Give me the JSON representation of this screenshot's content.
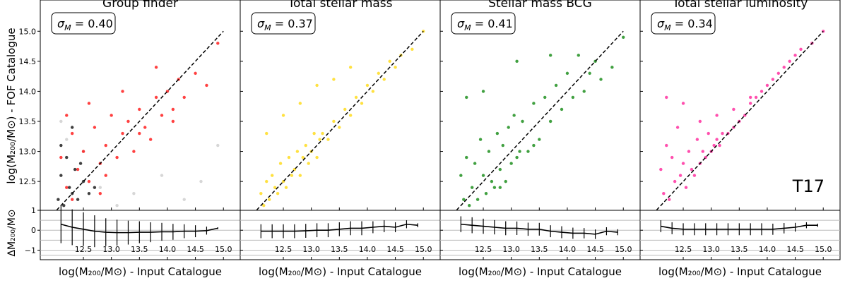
{
  "chart_data": {
    "type": "panels",
    "xlim": [
      11.73,
      15.3
    ],
    "ylim": [
      12.02,
      15.52
    ],
    "res_ylim": [
      -1.48,
      1
    ],
    "xticks": [
      {
        "value": 12.5,
        "label": "12.5"
      },
      {
        "value": 13.0,
        "label": "13.0"
      },
      {
        "value": 13.5,
        "label": "13.5"
      },
      {
        "value": 14.0,
        "label": "14.0"
      },
      {
        "value": 14.5,
        "label": "14.5"
      },
      {
        "value": 15.0,
        "label": "15.0"
      }
    ],
    "yticks": [
      {
        "value": 12.5,
        "label": "12.5"
      },
      {
        "value": 13.0,
        "label": "13.0"
      },
      {
        "value": 13.5,
        "label": "13.5"
      },
      {
        "value": 14.0,
        "label": "14.0"
      },
      {
        "value": 14.5,
        "label": "14.5"
      },
      {
        "value": 15.0,
        "label": "15.0"
      }
    ],
    "res_yticks": [
      {
        "value": -1,
        "label": "−1"
      },
      0,
      1
    ],
    "res_grid": [
      -1.25,
      -1,
      -0.5,
      0,
      0.5
    ],
    "xlabel": "log(M₂₀₀/M⊙) - Input Catalogue",
    "ylabel": "log(M₂₀₀/M⊙) - FOF Catalogue",
    "res_ylabel": "ΔM₂₀₀/M⊙",
    "sigma_symbol": "σ",
    "sigma_sub": "M",
    "sigma_eq": " =  ",
    "reference_line": {
      "x": [
        11.75,
        15.0
      ],
      "y": [
        11.75,
        15.0
      ]
    },
    "annotation": "T17",
    "panels": [
      {
        "type": "scatter",
        "title": "Group finder",
        "sigma": "0.40",
        "series": [
          {
            "color": "#c8c8c8",
            "x": [
              12.2,
              12.8,
              13.4,
              13.9,
              14.3,
              14.6,
              14.9,
              12.5,
              13.1,
              12.1
            ],
            "values": [
              13.2,
              12.4,
              12.3,
              12.6,
              12.2,
              12.5,
              13.1,
              13.0,
              12.1,
              13.5
            ]
          },
          {
            "color": "#ff0000",
            "x": [
              12.1,
              12.2,
              12.3,
              12.4,
              12.5,
              12.6,
              12.7,
              12.8,
              12.9,
              13.0,
              13.1,
              13.2,
              13.3,
              13.4,
              13.5,
              13.6,
              13.7,
              13.8,
              13.9,
              14.0,
              14.1,
              14.2,
              14.3,
              14.5,
              14.7,
              14.9,
              12.3,
              12.6,
              12.9,
              13.2,
              13.5,
              13.8,
              14.1,
              12.2,
              12.8
            ],
            "values": [
              12.9,
              12.4,
              13.3,
              12.7,
              13.0,
              12.5,
              13.4,
              12.8,
              13.1,
              13.6,
              12.9,
              13.3,
              13.5,
              13.0,
              13.7,
              13.4,
              13.2,
              13.9,
              13.6,
              14.0,
              13.7,
              14.2,
              13.9,
              14.3,
              14.1,
              14.8,
              12.2,
              13.8,
              12.6,
              14.0,
              13.3,
              14.4,
              13.5,
              13.6,
              12.3
            ]
          },
          {
            "color": "#000000",
            "x": [
              12.05,
              12.1,
              12.15,
              12.2,
              12.25,
              12.3,
              12.35,
              12.4,
              12.5,
              12.6,
              12.7,
              12.1,
              12.3,
              12.45
            ],
            "values": [
              12.2,
              12.6,
              12.1,
              12.9,
              12.4,
              12.3,
              12.7,
              12.2,
              12.5,
              12.3,
              12.4,
              13.1,
              13.4,
              12.8
            ]
          }
        ],
        "residual": {
          "x": [
            12.1,
            12.3,
            12.5,
            12.7,
            12.9,
            13.1,
            13.3,
            13.5,
            13.7,
            13.9,
            14.1,
            14.3,
            14.5,
            14.7,
            14.9
          ],
          "values": [
            0.3,
            0.15,
            0.05,
            -0.05,
            -0.1,
            -0.12,
            -0.12,
            -0.1,
            -0.1,
            -0.08,
            -0.08,
            -0.05,
            -0.05,
            -0.02,
            0.1
          ],
          "errors": [
            0.95,
            0.9,
            0.85,
            0.8,
            0.7,
            0.65,
            0.6,
            0.55,
            0.5,
            0.45,
            0.4,
            0.35,
            0.3,
            0.2,
            0.05
          ]
        }
      },
      {
        "type": "scatter",
        "title": "Total stellar mass",
        "sigma": "0.37",
        "series": [
          {
            "color": "#ffd700",
            "x": [
              12.1,
              12.15,
              12.2,
              12.25,
              12.3,
              12.35,
              12.4,
              12.45,
              12.5,
              12.55,
              12.6,
              12.65,
              12.7,
              12.75,
              12.8,
              12.85,
              12.9,
              12.95,
              13.0,
              13.05,
              13.1,
              13.15,
              13.2,
              13.3,
              13.4,
              13.5,
              13.6,
              13.7,
              13.8,
              13.9,
              14.0,
              14.1,
              14.2,
              14.3,
              14.4,
              14.5,
              14.6,
              14.8,
              15.0,
              12.2,
              12.5,
              12.8,
              13.1,
              13.4,
              13.7
            ],
            "values": [
              12.3,
              12.1,
              12.5,
              12.2,
              12.6,
              12.4,
              12.3,
              12.8,
              12.5,
              12.4,
              12.9,
              12.6,
              12.7,
              13.0,
              12.6,
              12.9,
              13.1,
              12.8,
              13.0,
              13.3,
              12.9,
              13.2,
              13.3,
              13.2,
              13.5,
              13.4,
              13.7,
              13.6,
              13.9,
              13.8,
              14.1,
              14.0,
              14.3,
              14.2,
              14.5,
              14.4,
              14.6,
              14.7,
              15.0,
              13.3,
              13.6,
              13.8,
              14.1,
              14.2,
              14.4
            ]
          }
        ],
        "residual": {
          "x": [
            12.1,
            12.3,
            12.5,
            12.7,
            12.9,
            13.1,
            13.3,
            13.5,
            13.7,
            13.9,
            14.1,
            14.3,
            14.5,
            14.7,
            14.9
          ],
          "values": [
            -0.05,
            -0.05,
            -0.05,
            -0.05,
            -0.03,
            0,
            0,
            0.05,
            0.1,
            0.1,
            0.15,
            0.2,
            0.15,
            0.3,
            0.25
          ],
          "errors": [
            0.35,
            0.35,
            0.35,
            0.35,
            0.35,
            0.35,
            0.35,
            0.35,
            0.35,
            0.35,
            0.3,
            0.3,
            0.25,
            0.2,
            0.1
          ]
        }
      },
      {
        "type": "scatter",
        "title": "Stellar mass BCG",
        "sigma": "0.41",
        "series": [
          {
            "color": "#008000",
            "x": [
              12.1,
              12.15,
              12.2,
              12.25,
              12.3,
              12.35,
              12.4,
              12.45,
              12.5,
              12.55,
              12.6,
              12.65,
              12.7,
              12.75,
              12.8,
              12.85,
              12.9,
              12.95,
              13.0,
              13.05,
              13.1,
              13.15,
              13.2,
              13.3,
              13.4,
              13.5,
              13.6,
              13.7,
              13.8,
              13.9,
              14.0,
              14.1,
              14.2,
              14.3,
              14.4,
              14.5,
              14.6,
              14.8,
              15.0,
              12.2,
              12.5,
              12.8,
              13.1,
              13.4,
              13.7
            ],
            "values": [
              12.6,
              12.2,
              12.9,
              12.1,
              12.4,
              12.8,
              12.2,
              13.2,
              12.6,
              12.3,
              13.0,
              12.5,
              12.4,
              13.3,
              12.7,
              13.1,
              12.5,
              13.4,
              12.8,
              13.6,
              12.9,
              13.0,
              13.5,
              13.0,
              13.8,
              13.2,
              13.9,
              13.5,
              14.1,
              13.7,
              14.3,
              13.9,
              14.6,
              14.0,
              14.3,
              14.5,
              14.2,
              14.4,
              14.9,
              13.9,
              14.0,
              12.4,
              14.5,
              13.1,
              14.6
            ]
          }
        ],
        "residual": {
          "x": [
            12.1,
            12.3,
            12.5,
            12.7,
            12.9,
            13.1,
            13.3,
            13.5,
            13.7,
            13.9,
            14.1,
            14.3,
            14.5,
            14.7,
            14.9
          ],
          "values": [
            0.3,
            0.25,
            0.2,
            0.15,
            0.1,
            0.1,
            0.05,
            0.05,
            -0.05,
            -0.1,
            -0.15,
            -0.15,
            -0.2,
            -0.05,
            -0.1
          ],
          "errors": [
            0.4,
            0.4,
            0.38,
            0.36,
            0.35,
            0.34,
            0.33,
            0.32,
            0.3,
            0.3,
            0.28,
            0.26,
            0.24,
            0.2,
            0.15
          ]
        }
      },
      {
        "type": "scatter",
        "title": "Total stellar luminosity",
        "sigma": "0.34",
        "series": [
          {
            "color": "#ff1493",
            "x": [
              12.1,
              12.15,
              12.2,
              12.25,
              12.3,
              12.35,
              12.4,
              12.45,
              12.5,
              12.55,
              12.6,
              12.65,
              12.7,
              12.75,
              12.8,
              12.85,
              12.9,
              12.95,
              13.0,
              13.05,
              13.1,
              13.15,
              13.2,
              13.3,
              13.4,
              13.5,
              13.6,
              13.7,
              13.8,
              13.9,
              14.0,
              14.1,
              14.2,
              14.3,
              14.4,
              14.5,
              14.6,
              14.8,
              15.0,
              12.2,
              12.5,
              12.8,
              13.1,
              13.4,
              13.7
            ],
            "values": [
              12.7,
              12.3,
              13.1,
              12.2,
              12.9,
              12.5,
              13.4,
              12.6,
              12.8,
              12.4,
              13.0,
              12.7,
              12.6,
              13.2,
              12.8,
              13.0,
              12.9,
              13.3,
              13.0,
              13.1,
              13.2,
              13.1,
              13.3,
              13.3,
              13.4,
              13.5,
              13.6,
              13.8,
              13.9,
              14.0,
              14.1,
              14.2,
              14.3,
              14.4,
              14.5,
              14.6,
              14.7,
              14.8,
              15.0,
              13.9,
              13.8,
              13.5,
              13.6,
              13.7,
              13.9
            ]
          }
        ],
        "residual": {
          "x": [
            12.1,
            12.3,
            12.5,
            12.7,
            12.9,
            13.1,
            13.3,
            13.5,
            13.7,
            13.9,
            14.1,
            14.3,
            14.5,
            14.7,
            14.9
          ],
          "values": [
            0.2,
            0.1,
            0.05,
            0.05,
            0.05,
            0.05,
            0.05,
            0.05,
            0.05,
            0.05,
            0.05,
            0.1,
            0.15,
            0.25,
            0.25
          ],
          "errors": [
            0.3,
            0.3,
            0.3,
            0.3,
            0.3,
            0.3,
            0.3,
            0.3,
            0.3,
            0.3,
            0.28,
            0.26,
            0.22,
            0.15,
            0.08
          ]
        }
      }
    ]
  }
}
